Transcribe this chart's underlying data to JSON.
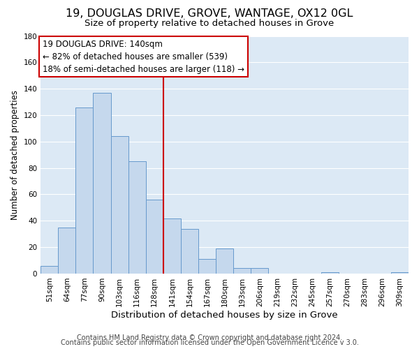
{
  "title": "19, DOUGLAS DRIVE, GROVE, WANTAGE, OX12 0GL",
  "subtitle": "Size of property relative to detached houses in Grove",
  "xlabel": "Distribution of detached houses by size in Grove",
  "ylabel": "Number of detached properties",
  "bar_color": "#c5d8ed",
  "bar_edge_color": "#6699cc",
  "bg_color": "#dce9f5",
  "categories": [
    "51sqm",
    "64sqm",
    "77sqm",
    "90sqm",
    "103sqm",
    "116sqm",
    "128sqm",
    "141sqm",
    "154sqm",
    "167sqm",
    "180sqm",
    "193sqm",
    "206sqm",
    "219sqm",
    "232sqm",
    "245sqm",
    "257sqm",
    "270sqm",
    "283sqm",
    "296sqm",
    "309sqm"
  ],
  "values": [
    6,
    35,
    126,
    137,
    104,
    85,
    56,
    42,
    34,
    11,
    19,
    4,
    4,
    0,
    0,
    0,
    1,
    0,
    0,
    0,
    1
  ],
  "vline_color": "#cc0000",
  "vline_bar_index": 7,
  "annotation_line1": "19 DOUGLAS DRIVE: 140sqm",
  "annotation_line2": "← 82% of detached houses are smaller (539)",
  "annotation_line3": "18% of semi-detached houses are larger (118) →",
  "annotation_box_color": "#ffffff",
  "annotation_box_edge": "#cc0000",
  "footer1": "Contains HM Land Registry data © Crown copyright and database right 2024.",
  "footer2": "Contains public sector information licensed under the Open Government Licence v 3.0.",
  "ylim": [
    0,
    180
  ],
  "yticks": [
    0,
    20,
    40,
    60,
    80,
    100,
    120,
    140,
    160,
    180
  ],
  "title_fontsize": 11.5,
  "subtitle_fontsize": 9.5,
  "xlabel_fontsize": 9.5,
  "ylabel_fontsize": 8.5,
  "tick_fontsize": 7.5,
  "annotation_fontsize": 8.5,
  "footer_fontsize": 7
}
